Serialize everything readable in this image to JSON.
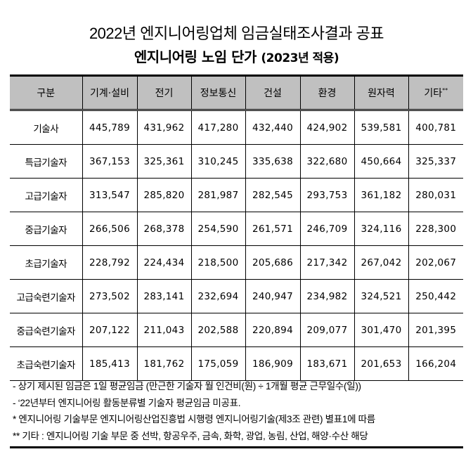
{
  "document": {
    "title": "2022년 엔지니어링업체 임금실태조사결과 공표",
    "subtitle_main": "엔지니어링 노임 단가",
    "subtitle_note": "(2023년 적용)"
  },
  "table": {
    "headers": [
      "구분",
      "기계·설비",
      "전기",
      "정보통신",
      "건설",
      "환경",
      "원자력",
      "기타"
    ],
    "last_header_mark": "**",
    "rows": [
      {
        "label": "기술사",
        "values": [
          "445,789",
          "431,962",
          "417,280",
          "432,440",
          "424,902",
          "539,581",
          "400,781"
        ]
      },
      {
        "label": "특급기술자",
        "values": [
          "367,153",
          "325,361",
          "310,245",
          "335,638",
          "322,680",
          "450,664",
          "325,337"
        ]
      },
      {
        "label": "고급기술자",
        "values": [
          "313,547",
          "285,820",
          "281,987",
          "282,545",
          "293,753",
          "361,182",
          "280,031"
        ]
      },
      {
        "label": "중급기술자",
        "values": [
          "266,506",
          "268,378",
          "254,590",
          "261,571",
          "246,709",
          "324,116",
          "228,300"
        ]
      },
      {
        "label": "초급기술자",
        "values": [
          "228,792",
          "224,434",
          "218,500",
          "205,686",
          "217,342",
          "267,042",
          "202,067"
        ]
      },
      {
        "label": "고급숙련기술자",
        "values": [
          "273,502",
          "283,141",
          "232,694",
          "240,947",
          "234,982",
          "324,521",
          "250,442"
        ]
      },
      {
        "label": "중급숙련기술자",
        "values": [
          "207,122",
          "211,043",
          "202,588",
          "220,894",
          "209,077",
          "301,470",
          "201,395"
        ]
      },
      {
        "label": "초급숙련기술자",
        "values": [
          "185,413",
          "181,762",
          "175,059",
          "186,909",
          "183,671",
          "201,653",
          "166,204"
        ]
      }
    ]
  },
  "notes": [
    "- 상기 제시된 임금은 1일 평균임금 (만근한 기술자 월 인건비(원) ÷ 1개월 평균 근무일수(일))",
    "- ‘22년부터 엔지니어링 활동분류별 기술자 평균임금 미공표.",
    "* 엔지니어링 기술부문 엔지니어링산업진흥법 시행령 엔지니어링기술(제3조 관련) 별표1에 따름",
    "** 기타 : 엔지니어링 기술 부문 중 선박, 항공우주, 금속, 화학, 광업, 농림, 산업, 해양·수산 해당"
  ],
  "colors": {
    "header_bg": "#c0c0c0",
    "border": "#000000",
    "text": "#000000"
  }
}
